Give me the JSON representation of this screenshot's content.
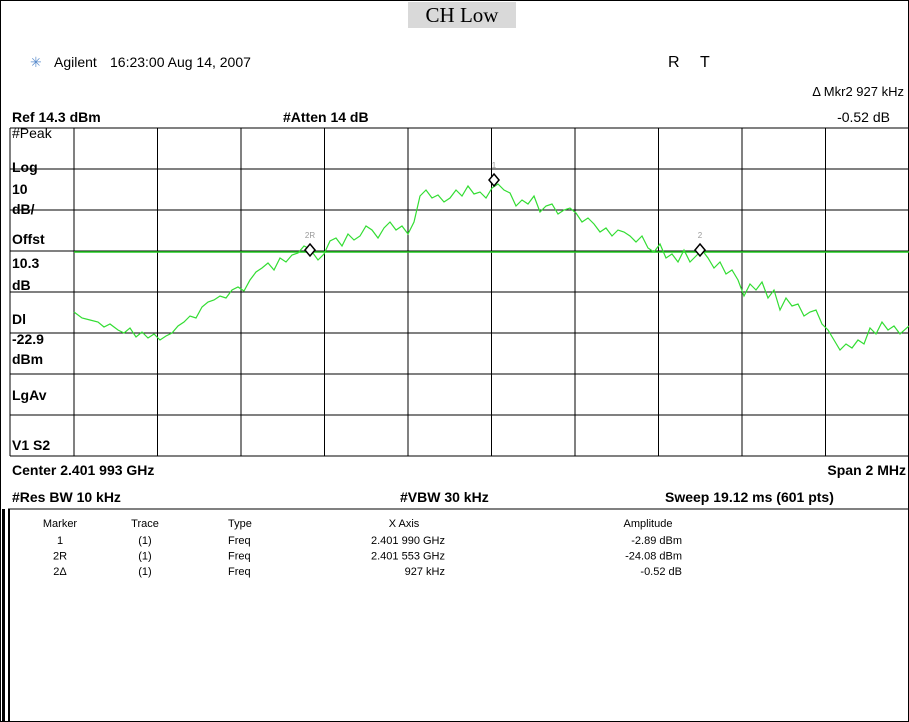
{
  "title": "CH Low",
  "header": {
    "brand": "Agilent",
    "datetime": "16:23:00  Aug 14, 2007",
    "flag_r": "R",
    "flag_t": "T"
  },
  "readout": {
    "marker": "Δ Mkr2  927 kHz",
    "value": "-0.52 dB"
  },
  "top_row": {
    "ref": "Ref 14.3 dBm",
    "atten": "#Atten 14 dB"
  },
  "left_labels": [
    "#Peak",
    "Log",
    "10",
    "dB/",
    "Offst",
    "10.3",
    "dB",
    "Dl",
    "-22.9",
    "dBm",
    "LgAv",
    "V1  S2"
  ],
  "bottom_row1": {
    "center": "Center 2.401 993 GHz",
    "span": "Span 2 MHz"
  },
  "bottom_row2": {
    "res_bw": "#Res BW 10 kHz",
    "vbw": "#VBW 30 kHz",
    "sweep": "Sweep 19.12 ms (601 pts)"
  },
  "markers": [
    "1",
    "2R",
    "2"
  ],
  "table": {
    "columns": [
      "Marker",
      "Trace",
      "Type",
      "X Axis",
      "Amplitude"
    ],
    "rows": [
      [
        "1",
        "(1)",
        "Freq",
        "2.401 990 GHz",
        "-2.89 dBm"
      ],
      [
        "2R",
        "(1)",
        "Freq",
        "2.401 553 GHz",
        "-24.08 dBm"
      ],
      [
        "2Δ",
        "(1)",
        "Freq",
        "927 kHz",
        "-0.52 dB"
      ]
    ]
  }
}
